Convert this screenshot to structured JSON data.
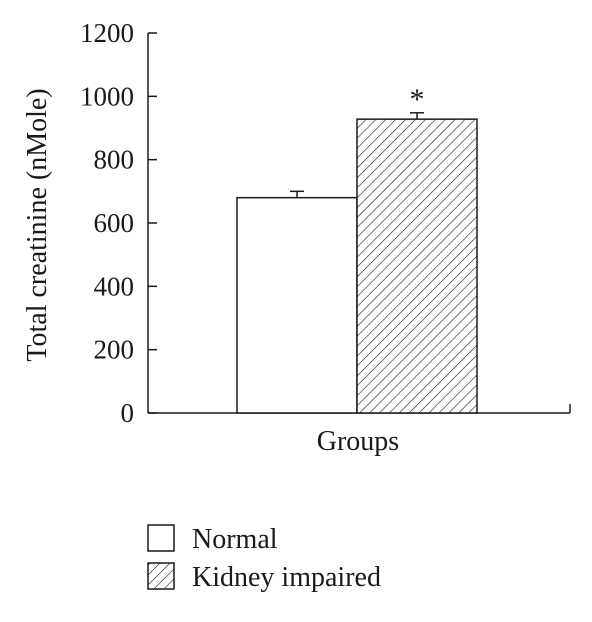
{
  "chart_data": {
    "type": "bar",
    "xlabel": "Groups",
    "ylabel": "Total creatinine (nMole)",
    "ylim": [
      0,
      1200
    ],
    "yticks": [
      0,
      200,
      400,
      600,
      800,
      1000,
      1200
    ],
    "grid": false,
    "legend_position": "bottom-left",
    "series": [
      {
        "name": "Normal",
        "value": 680,
        "error": 20,
        "fill": "white",
        "annotation": ""
      },
      {
        "name": "Kidney impaired",
        "value": 928,
        "error": 20,
        "fill": "diagonal-hatch",
        "annotation": "*"
      }
    ],
    "colors": {
      "axis": "#1a1a1a",
      "bar_stroke": "#1a1a1a",
      "background": "#ffffff"
    }
  }
}
